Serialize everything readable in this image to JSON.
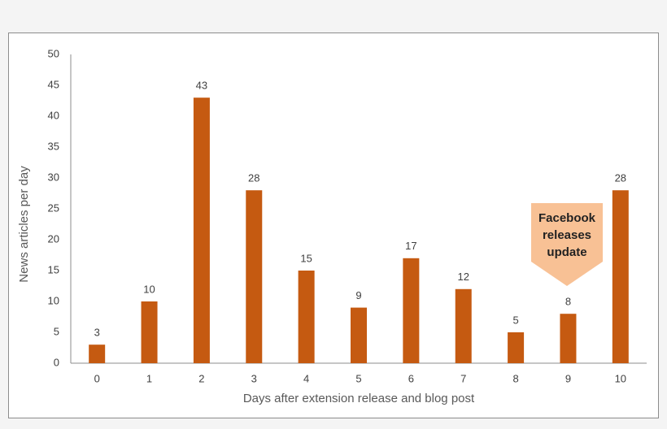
{
  "chart_data": {
    "type": "bar",
    "x_label": "Days after extension release and blog post",
    "y_label": "News articles per day",
    "categories": [
      "0",
      "1",
      "2",
      "3",
      "4",
      "5",
      "6",
      "7",
      "8",
      "9",
      "10"
    ],
    "values": [
      3,
      10,
      43,
      28,
      15,
      9,
      17,
      12,
      5,
      8,
      28
    ],
    "color": "#c55a11",
    "ylim": [
      0,
      50
    ],
    "yticks": [
      0,
      5,
      10,
      15,
      20,
      25,
      30,
      35,
      40,
      45,
      50
    ],
    "grid": false,
    "annotation": "Facebook releases update"
  }
}
